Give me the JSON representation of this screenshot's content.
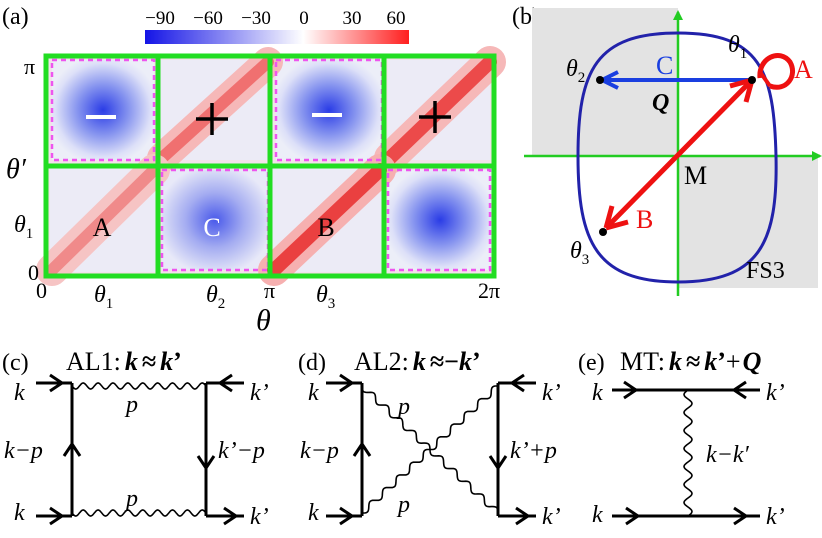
{
  "panel_a": {
    "label": "(a)",
    "colorbar_ticks": [
      "−90",
      "−60",
      "−30",
      "0",
      "30",
      "60"
    ],
    "colorbar_colors": [
      "#1414e6",
      "#ffffff",
      "#ff1e1e"
    ],
    "y_ticks": {
      "top": "π",
      "bottom": "0",
      "theta1": "θ",
      "theta1_sub": "1"
    },
    "y_axis": {
      "main": "θ",
      "prime": "′"
    },
    "x_ticks": {
      "zero": "0",
      "pi": "π",
      "two_pi": "2π",
      "t1": "θ",
      "t2": "θ",
      "t3": "θ",
      "s1": "1",
      "s2": "2",
      "s3": "3"
    },
    "x_axis": "θ",
    "cell_labels": {
      "minus": "−",
      "plus": "+",
      "A": "A",
      "C": "C",
      "B": "B"
    },
    "grid_color": "#22dd22",
    "dash_color": "#ee55ee"
  },
  "panel_b": {
    "label": "(b)",
    "theta1": "θ",
    "s1": "1",
    "theta2": "θ",
    "s2": "2",
    "theta3": "θ",
    "s3": "3",
    "C": "C",
    "Q": "Q",
    "A": "A",
    "B": "B",
    "M": "M",
    "FS3": "FS3",
    "colors": {
      "fermi_surface": "#2222aa",
      "C_arrow": "#1a3fe0",
      "A_B_arrows": "#ee1111",
      "axes": "#22cc22",
      "shade": "#e3e3e3"
    }
  },
  "panel_c": {
    "label": "(c)",
    "title_name": "AL1:",
    "title_k": "k",
    "title_approx": "≈",
    "title_k2": "k",
    "title_prime": "’",
    "k_tl": "k",
    "k_tr": "k’",
    "k_bl": "k",
    "k_br": "k’",
    "p_top": "p",
    "p_bot": "p",
    "left_mid": "k−p",
    "right_mid": "k’−p"
  },
  "panel_d": {
    "label": "(d)",
    "title_name": "AL2:",
    "title_k": "k",
    "title_approx": "≈",
    "title_minus": "−",
    "title_k2": "k",
    "title_prime": "’",
    "k_tl": "k",
    "k_tr": "k’",
    "k_bl": "k",
    "k_br": "k’",
    "p_top": "p",
    "p_bot": "p",
    "left_mid": "k−p",
    "right_mid": "k’+p"
  },
  "panel_e": {
    "label": "(e)",
    "title_name": "MT:",
    "title_k": "k",
    "title_approx": "≈",
    "title_k2": "k",
    "title_prime": "’",
    "title_plus": "+",
    "title_Q": "Q",
    "k_tl": "k",
    "k_tr": "k’",
    "k_bl": "k",
    "k_br": "k’",
    "mid": "k−k′"
  }
}
